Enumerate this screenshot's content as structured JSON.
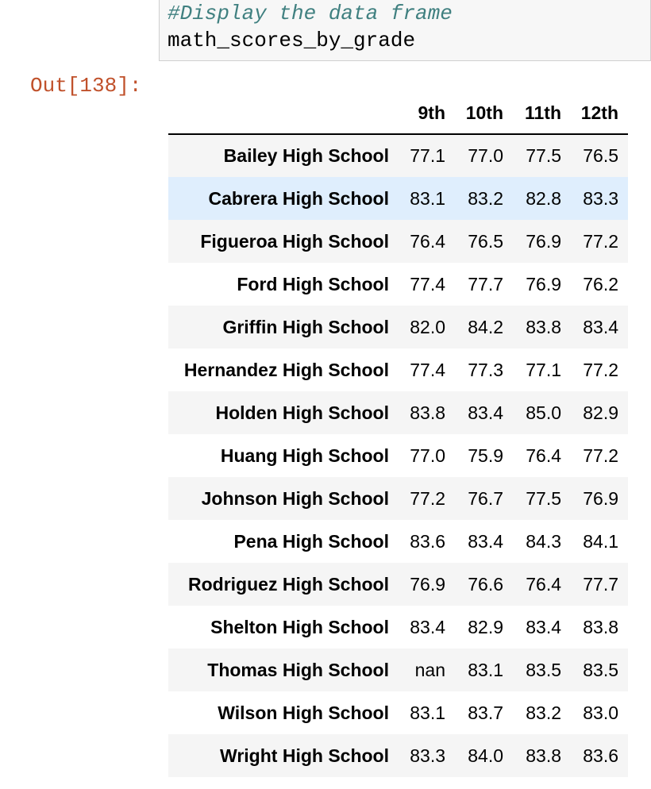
{
  "code_cell": {
    "comment": "#Display the data frame",
    "code": "math_scores_by_grade"
  },
  "output": {
    "prompt": "Out[138]:"
  },
  "table": {
    "index_header": "",
    "columns": [
      "9th",
      "10th",
      "11th",
      "12th"
    ],
    "rows": [
      {
        "school": "Bailey High School",
        "values": [
          "77.1",
          "77.0",
          "77.5",
          "76.5"
        ]
      },
      {
        "school": "Cabrera High School",
        "values": [
          "83.1",
          "83.2",
          "82.8",
          "83.3"
        ]
      },
      {
        "school": "Figueroa High School",
        "values": [
          "76.4",
          "76.5",
          "76.9",
          "77.2"
        ]
      },
      {
        "school": "Ford High School",
        "values": [
          "77.4",
          "77.7",
          "76.9",
          "76.2"
        ]
      },
      {
        "school": "Griffin High School",
        "values": [
          "82.0",
          "84.2",
          "83.8",
          "83.4"
        ]
      },
      {
        "school": "Hernandez High School",
        "values": [
          "77.4",
          "77.3",
          "77.1",
          "77.2"
        ]
      },
      {
        "school": "Holden High School",
        "values": [
          "83.8",
          "83.4",
          "85.0",
          "82.9"
        ]
      },
      {
        "school": "Huang High School",
        "values": [
          "77.0",
          "75.9",
          "76.4",
          "77.2"
        ]
      },
      {
        "school": "Johnson High School",
        "values": [
          "77.2",
          "76.7",
          "77.5",
          "76.9"
        ]
      },
      {
        "school": "Pena High School",
        "values": [
          "83.6",
          "83.4",
          "84.3",
          "84.1"
        ]
      },
      {
        "school": "Rodriguez High School",
        "values": [
          "76.9",
          "76.6",
          "76.4",
          "77.7"
        ]
      },
      {
        "school": "Shelton High School",
        "values": [
          "83.4",
          "82.9",
          "83.4",
          "83.8"
        ]
      },
      {
        "school": "Thomas High School",
        "values": [
          "nan",
          "83.1",
          "83.5",
          "83.5"
        ]
      },
      {
        "school": "Wilson High School",
        "values": [
          "83.1",
          "83.7",
          "83.2",
          "83.0"
        ]
      },
      {
        "school": "Wright High School",
        "values": [
          "83.3",
          "84.0",
          "83.8",
          "83.6"
        ]
      }
    ],
    "hovered_row": 1
  }
}
